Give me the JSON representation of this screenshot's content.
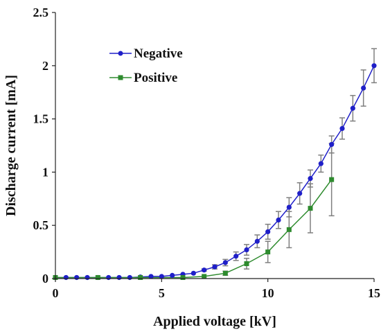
{
  "chart_data": {
    "type": "scatter",
    "xlabel": "Applied voltage [kV]",
    "ylabel": "Discharge current [mA]",
    "xlim": [
      0,
      15
    ],
    "ylim": [
      0,
      2.5
    ],
    "x_ticks": [
      "0",
      "5",
      "10",
      "15"
    ],
    "y_ticks": [
      "0",
      "0.5",
      "1",
      "1.5",
      "2",
      "2.5"
    ],
    "grid": false,
    "legend_position": "top-left",
    "series": [
      {
        "name": "Negative",
        "color": "#1f1fc8",
        "marker": "circle",
        "x": [
          0,
          0.5,
          1,
          1.5,
          2,
          2.5,
          3,
          3.5,
          4,
          4.5,
          5,
          5.5,
          6,
          6.5,
          7,
          7.5,
          8,
          8.5,
          9,
          9.5,
          10,
          10.5,
          11,
          11.5,
          12,
          12.5,
          13,
          13.5,
          14,
          14.5,
          15
        ],
        "y": [
          0.01,
          0.01,
          0.01,
          0.01,
          0.01,
          0.01,
          0.01,
          0.01,
          0.015,
          0.02,
          0.02,
          0.03,
          0.04,
          0.05,
          0.08,
          0.11,
          0.15,
          0.21,
          0.27,
          0.35,
          0.44,
          0.55,
          0.67,
          0.8,
          0.94,
          1.08,
          1.26,
          1.41,
          1.6,
          1.79,
          2.0
        ],
        "error": [
          0,
          0,
          0,
          0,
          0,
          0,
          0,
          0,
          0,
          0,
          0,
          0,
          0,
          0,
          0.01,
          0.02,
          0.03,
          0.04,
          0.05,
          0.06,
          0.07,
          0.08,
          0.09,
          0.1,
          0.08,
          0.08,
          0.08,
          0.1,
          0.12,
          0.17,
          0.16
        ]
      },
      {
        "name": "Positive",
        "color": "#2e8b2e",
        "marker": "square",
        "x": [
          0,
          2,
          4,
          6,
          7,
          8,
          9,
          10,
          11,
          12,
          13
        ],
        "y": [
          0.01,
          0.01,
          0.01,
          0.01,
          0.02,
          0.05,
          0.14,
          0.25,
          0.46,
          0.66,
          0.93
        ],
        "error": [
          0,
          0,
          0,
          0,
          0,
          0.02,
          0.05,
          0.1,
          0.17,
          0.23,
          0.34
        ]
      }
    ]
  }
}
